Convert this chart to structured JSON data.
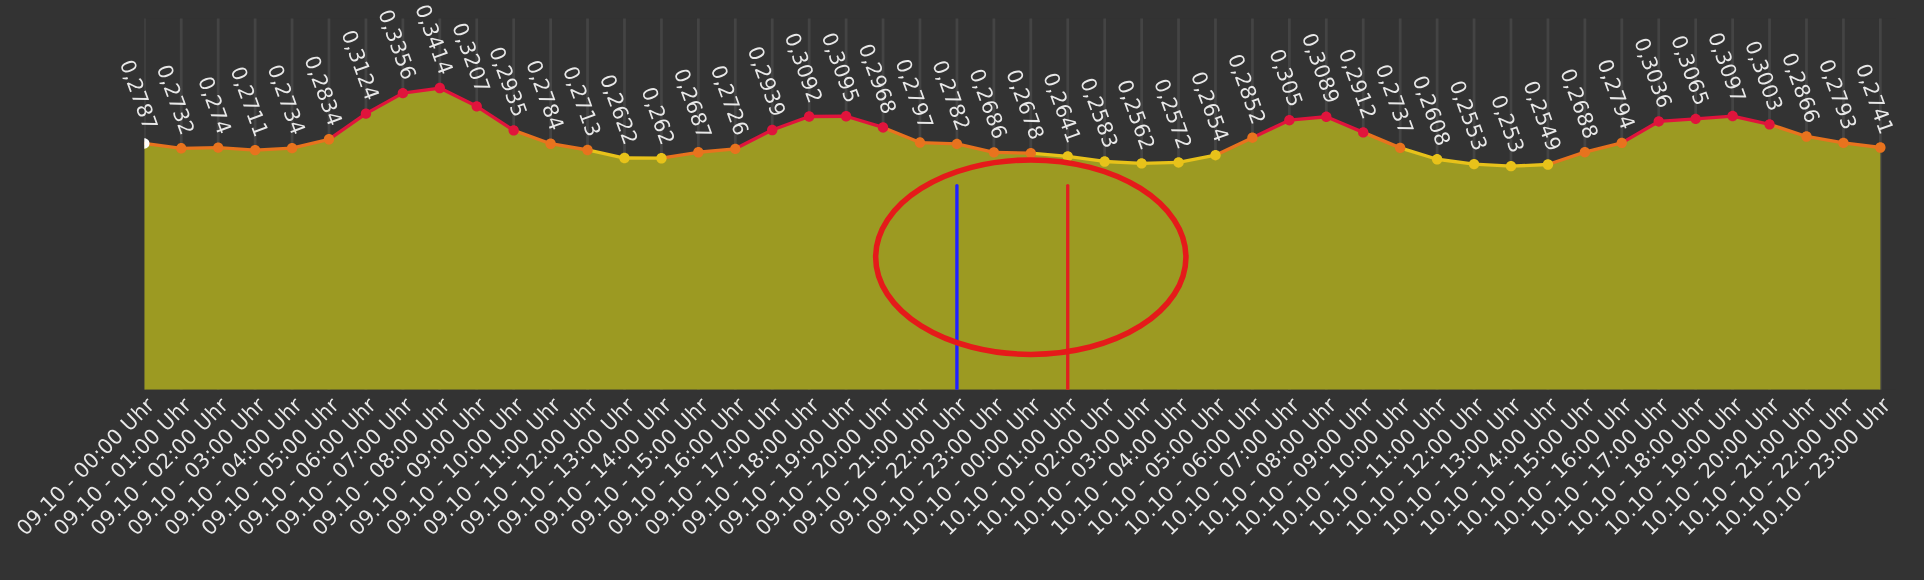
{
  "chart_data": {
    "type": "area",
    "categories": [
      "09.10 - 00:00 Uhr",
      "09.10 - 01:00 Uhr",
      "09.10 - 02:00 Uhr",
      "09.10 - 03:00 Uhr",
      "09.10 - 04:00 Uhr",
      "09.10 - 05:00 Uhr",
      "09.10 - 06:00 Uhr",
      "09.10 - 07:00 Uhr",
      "09.10 - 08:00 Uhr",
      "09.10 - 09:00 Uhr",
      "09.10 - 10:00 Uhr",
      "09.10 - 11:00 Uhr",
      "09.10 - 12:00 Uhr",
      "09.10 - 13:00 Uhr",
      "09.10 - 14:00 Uhr",
      "09.10 - 15:00 Uhr",
      "09.10 - 16:00 Uhr",
      "09.10 - 17:00 Uhr",
      "09.10 - 18:00 Uhr",
      "09.10 - 19:00 Uhr",
      "09.10 - 20:00 Uhr",
      "09.10 - 21:00 Uhr",
      "09.10 - 22:00 Uhr",
      "09.10 - 23:00 Uhr",
      "10.10 - 00:00 Uhr",
      "10.10 - 01:00 Uhr",
      "10.10 - 02:00 Uhr",
      "10.10 - 03:00 Uhr",
      "10.10 - 04:00 Uhr",
      "10.10 - 05:00 Uhr",
      "10.10 - 06:00 Uhr",
      "10.10 - 07:00 Uhr",
      "10.10 - 08:00 Uhr",
      "10.10 - 09:00 Uhr",
      "10.10 - 10:00 Uhr",
      "10.10 - 11:00 Uhr",
      "10.10 - 12:00 Uhr",
      "10.10 - 13:00 Uhr",
      "10.10 - 14:00 Uhr",
      "10.10 - 15:00 Uhr",
      "10.10 - 16:00 Uhr",
      "10.10 - 17:00 Uhr",
      "10.10 - 18:00 Uhr",
      "10.10 - 19:00 Uhr",
      "10.10 - 20:00 Uhr",
      "10.10 - 21:00 Uhr",
      "10.10 - 22:00 Uhr",
      "10.10 - 23:00 Uhr"
    ],
    "values": [
      0.2787,
      0.2732,
      0.274,
      0.2711,
      0.2734,
      0.2834,
      0.3124,
      0.3356,
      0.3414,
      0.3207,
      0.2935,
      0.2784,
      0.2713,
      0.2622,
      0.262,
      0.2687,
      0.2726,
      0.2939,
      0.3092,
      0.3095,
      0.2968,
      0.2797,
      0.2782,
      0.2686,
      0.2678,
      0.2641,
      0.2583,
      0.2562,
      0.2572,
      0.2654,
      0.2852,
      0.305,
      0.3089,
      0.2912,
      0.2737,
      0.2608,
      0.2553,
      0.253,
      0.2549,
      0.2688,
      0.2794,
      0.3036,
      0.3065,
      0.3097,
      0.3003,
      0.2866,
      0.2793,
      0.2741
    ],
    "value_labels": [
      "0,2787",
      "0,2732",
      "0,274",
      "0,2711",
      "0,2734",
      "0,2834",
      "0,3124",
      "0,3356",
      "0,3414",
      "0,3207",
      "0,2935",
      "0,2784",
      "0,2713",
      "0,2622",
      "0,262",
      "0,2687",
      "0,2726",
      "0,2939",
      "0,3092",
      "0,3095",
      "0,2968",
      "0,2797",
      "0,2782",
      "0,2686",
      "0,2678",
      "0,2641",
      "0,2583",
      "0,2562",
      "0,2572",
      "0,2654",
      "0,2852",
      "0,305",
      "0,3089",
      "0,2912",
      "0,2737",
      "0,2608",
      "0,2553",
      "0,253",
      "0,2549",
      "0,2688",
      "0,2794",
      "0,3036",
      "0,3065",
      "0,3097",
      "0,3003",
      "0,2866",
      "0,2793",
      "0,2741"
    ],
    "colors": [
      "#ffffff",
      "#e8731e",
      "#e8731e",
      "#e8731e",
      "#e8731e",
      "#e8731e",
      "#e0143c",
      "#e0143c",
      "#e0143c",
      "#e0143c",
      "#e0143c",
      "#e8731e",
      "#e8731e",
      "#e8c21a",
      "#e8c21a",
      "#e8731e",
      "#e8731e",
      "#e0143c",
      "#e0143c",
      "#e0143c",
      "#e0143c",
      "#e8731e",
      "#e8731e",
      "#e8731e",
      "#e8731e",
      "#e8c21a",
      "#e8c21a",
      "#e8c21a",
      "#e8c21a",
      "#e8c21a",
      "#e8731e",
      "#e0143c",
      "#e0143c",
      "#e0143c",
      "#e8731e",
      "#e8c21a",
      "#e8c21a",
      "#e8c21a",
      "#e8c21a",
      "#e8731e",
      "#e8731e",
      "#e0143c",
      "#e0143c",
      "#e0143c",
      "#e0143c",
      "#e8731e",
      "#e8731e",
      "#e8731e"
    ],
    "color": "#9c9a22",
    "ylim": [
      0,
      0.42
    ],
    "ref_lines": [
      {
        "axis": "x",
        "value": "09.10 - 22:00 Uhr",
        "color": "#2020ff"
      },
      {
        "axis": "x",
        "value": "10.10 - 01:00 Uhr",
        "color": "#e02020"
      }
    ],
    "grid": "x",
    "legend": false,
    "marker": "circle",
    "line_style": "solid"
  }
}
